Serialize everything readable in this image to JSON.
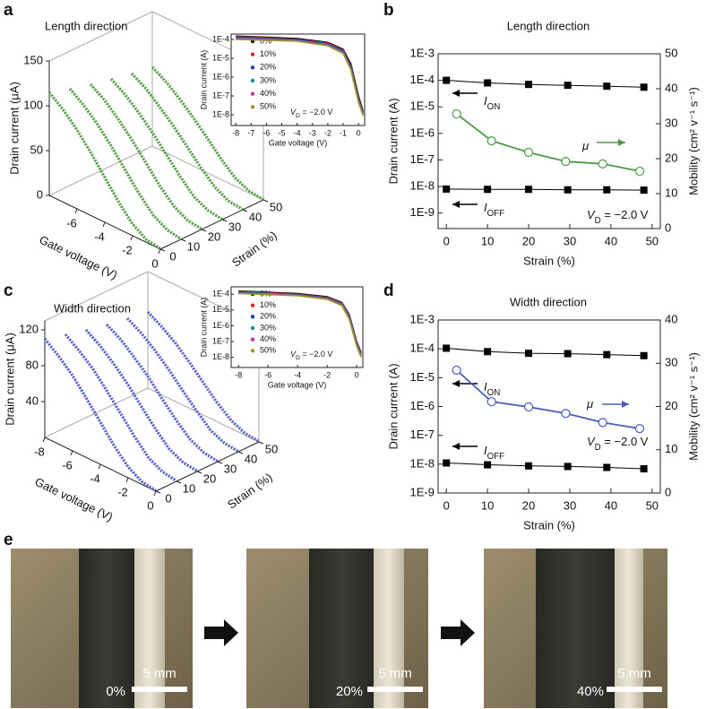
{
  "panel_labels": [
    "a",
    "b",
    "c",
    "d",
    "e"
  ],
  "chart_data": [
    {
      "type": "line3d",
      "title": "Length direction",
      "xlabel": "Gate voltage (V)",
      "ylabel": "Strain (%)",
      "zlabel": "Drain current (μA)",
      "xlim": [
        -8,
        0
      ],
      "xticks": [
        -6,
        -4,
        -2,
        0
      ],
      "ylim": [
        0,
        50
      ],
      "yticks": [
        0,
        10,
        20,
        30,
        40,
        50
      ],
      "zlim": [
        0,
        150
      ],
      "zticks": [
        0,
        50,
        100,
        150
      ],
      "x": [
        -8,
        -7,
        -6,
        -5,
        -4,
        -3,
        -2,
        -1,
        0
      ],
      "series": [
        {
          "strain": 0,
          "color": "#5a9e4b",
          "values": [
            115,
            103,
            88,
            70,
            50,
            30,
            13,
            3,
            0.5
          ]
        },
        {
          "strain": 10,
          "color": "#5a9e4b",
          "values": [
            108,
            97,
            83,
            66,
            47,
            28,
            12,
            3,
            0.5
          ]
        },
        {
          "strain": 20,
          "color": "#5a9e4b",
          "values": [
            102,
            92,
            78,
            62,
            44,
            26,
            11,
            2.5,
            0.5
          ]
        },
        {
          "strain": 30,
          "color": "#5a9e4b",
          "values": [
            97,
            87,
            74,
            59,
            42,
            25,
            10,
            2.5,
            0.4
          ]
        },
        {
          "strain": 40,
          "color": "#5a9e4b",
          "values": [
            92,
            83,
            70,
            56,
            40,
            24,
            10,
            2,
            0.4
          ]
        },
        {
          "strain": 50,
          "color": "#5a9e4b",
          "values": [
            88,
            79,
            67,
            53,
            38,
            22,
            9,
            2,
            0.4
          ]
        }
      ]
    },
    {
      "type": "line",
      "xlabel": "Gate voltage (V)",
      "ylabel": "Drain current (A)",
      "ylog": true,
      "xlim": [
        -8.3,
        0.4
      ],
      "xticks": [
        -8,
        -7,
        -6,
        -5,
        -4,
        -3,
        -2,
        -1,
        0
      ],
      "ylim": [
        2.7e-09,
        0.000193
      ],
      "yticks": [
        {
          "value": 1e-08,
          "label": "1E-8"
        },
        {
          "value": 1e-07,
          "label": "1E-7"
        },
        {
          "value": 1e-06,
          "label": "1E-6"
        },
        {
          "value": 1e-05,
          "label": "1E-5"
        },
        {
          "value": 0.0001,
          "label": "1E-4"
        }
      ],
      "x": [
        -8,
        -6,
        -4,
        -2,
        -1,
        -0.5,
        0,
        0.3
      ],
      "series": [
        {
          "name": "0%",
          "color": "#000000",
          "values": [
            0.00015,
            0.00013,
            0.00011,
            7e-05,
            3e-05,
            5e-06,
            1e-07,
            1.5e-08
          ]
        },
        {
          "name": "10%",
          "color": "#d62728",
          "values": [
            0.00014,
            0.00012,
            0.0001,
            6.5e-05,
            2.7e-05,
            4e-06,
            8e-08,
            1.3e-08
          ]
        },
        {
          "name": "20%",
          "color": "#1f3fbf",
          "values": [
            0.00013,
            0.00011,
            9.5e-05,
            6e-05,
            2.5e-05,
            3.5e-06,
            7e-08,
            1.2e-08
          ]
        },
        {
          "name": "30%",
          "color": "#1a8a8a",
          "values": [
            0.00012,
            0.000105,
            9e-05,
            5.5e-05,
            2.2e-05,
            3e-06,
            6e-08,
            1.1e-08
          ]
        },
        {
          "name": "40%",
          "color": "#c0399e",
          "values": [
            0.00011,
            0.0001,
            8.5e-05,
            5e-05,
            2e-05,
            2.7e-06,
            5e-08,
            1e-08
          ]
        },
        {
          "name": "50%",
          "color": "#9a9a2a",
          "values": [
            0.0001,
            9e-05,
            8e-05,
            4.6e-05,
            1.8e-05,
            2.4e-06,
            4.5e-08,
            9e-09
          ]
        }
      ],
      "annotation": {
        "symbol": "V",
        "subscript": "D",
        "text": " = −2.0 V"
      }
    },
    {
      "type": "dual_line",
      "title": "Length direction",
      "xlabel": "Strain (%)",
      "ylabel": "Drain current (A)",
      "y2label": "Mobility (cm² v⁻¹ s⁻¹)",
      "ylog": true,
      "xlim": [
        -2,
        52
      ],
      "xticks": [
        0,
        10,
        20,
        30,
        40,
        50
      ],
      "ylim": [
        2.6e-10,
        0.001
      ],
      "yticks": [
        {
          "value": 1e-09,
          "label": "1E-9"
        },
        {
          "value": 1e-08,
          "label": "1E-8"
        },
        {
          "value": 1e-07,
          "label": "1E-7"
        },
        {
          "value": 1e-06,
          "label": "1E-6"
        },
        {
          "value": 1e-05,
          "label": "1E-5"
        },
        {
          "value": 0.0001,
          "label": "1E-4"
        },
        {
          "value": 0.001,
          "label": "1E-3"
        }
      ],
      "y2lim": [
        0,
        50
      ],
      "y2ticks": [
        0,
        10,
        20,
        30,
        40,
        50
      ],
      "series": [
        {
          "label": {
            "symbol": "I",
            "subscript": "ON"
          },
          "axis": "y",
          "marker": "square",
          "color": "#000000",
          "x": [
            0,
            10,
            20,
            29.5,
            39,
            48
          ],
          "values": [
            0.0001,
            8e-05,
            7e-05,
            6.5e-05,
            6e-05,
            5.5e-05
          ]
        },
        {
          "label": {
            "symbol": "I",
            "subscript": "OFF"
          },
          "axis": "y",
          "marker": "square",
          "color": "#000000",
          "x": [
            0,
            10,
            20,
            29.5,
            39,
            48
          ],
          "values": [
            8e-09,
            7.8e-09,
            7.8e-09,
            7.5e-09,
            7.5e-09,
            7.3e-09
          ]
        },
        {
          "label": {
            "symbol": "μ"
          },
          "axis": "y2",
          "marker": "circle",
          "color": "#4e9a47",
          "x": [
            2.5,
            11,
            20,
            29,
            38,
            47
          ],
          "values": [
            32.8,
            25.1,
            21.8,
            19.2,
            18.5,
            16.4
          ]
        }
      ],
      "annotation": {
        "symbol": "V",
        "subscript": "D",
        "text": " = −2.0 V"
      }
    },
    {
      "type": "line3d",
      "title": "Width direction",
      "xlabel": "Gate voltage (V)",
      "ylabel": "Strain (%)",
      "zlabel": "Drain current (μA)",
      "xlim": [
        -8,
        0
      ],
      "xticks": [
        -8,
        -6,
        -4,
        -2,
        0
      ],
      "ylim": [
        0,
        50
      ],
      "yticks": [
        0,
        10,
        20,
        30,
        40,
        50
      ],
      "zlim": [
        0,
        130
      ],
      "zticks": [
        40,
        80,
        120
      ],
      "x": [
        -8,
        -7,
        -6,
        -5,
        -4,
        -3,
        -2,
        -1,
        0
      ],
      "series": [
        {
          "strain": 0,
          "color": "#5a64c8",
          "values": [
            110,
            98,
            84,
            66,
            47,
            28,
            12,
            3,
            0.5
          ]
        },
        {
          "strain": 10,
          "color": "#5a64c8",
          "values": [
            104,
            93,
            80,
            63,
            45,
            27,
            11,
            3,
            0.5
          ]
        },
        {
          "strain": 20,
          "color": "#5a64c8",
          "values": [
            98,
            88,
            75,
            60,
            42,
            25,
            10,
            2.5,
            0.5
          ]
        },
        {
          "strain": 30,
          "color": "#5a64c8",
          "values": [
            93,
            84,
            71,
            57,
            40,
            24,
            10,
            2.5,
            0.4
          ]
        },
        {
          "strain": 40,
          "color": "#5a64c8",
          "values": [
            89,
            80,
            68,
            54,
            38,
            23,
            9,
            2,
            0.4
          ]
        },
        {
          "strain": 50,
          "color": "#5a64c8",
          "values": [
            85,
            76,
            65,
            51,
            36,
            21,
            9,
            2,
            0.4
          ]
        }
      ]
    },
    {
      "type": "line",
      "xlabel": "Gate voltage (V)",
      "ylabel": "Drain current (A)",
      "ylog": true,
      "xlim": [
        -8.5,
        0.42
      ],
      "xticks": [
        -8,
        -6,
        -4,
        -2,
        0
      ],
      "ylim": [
        2.25e-09,
        0.000295
      ],
      "yticks": [
        {
          "value": 1e-08,
          "label": "1E-8"
        },
        {
          "value": 1e-07,
          "label": "1E-7"
        },
        {
          "value": 1e-06,
          "label": "1E-6"
        },
        {
          "value": 1e-05,
          "label": "1E-5"
        },
        {
          "value": 0.0001,
          "label": "1E-4"
        }
      ],
      "x": [
        -8,
        -6,
        -4,
        -2,
        -1,
        -0.5,
        0,
        0.3
      ],
      "series": [
        {
          "name": "0%",
          "color": "#000000",
          "values": [
            0.00016,
            0.000135,
            0.00011,
            7e-05,
            3e-05,
            5e-06,
            1e-07,
            2e-08
          ]
        },
        {
          "name": "10%",
          "color": "#d62728",
          "values": [
            0.00015,
            0.000125,
            0.0001,
            6.5e-05,
            2.8e-05,
            4.5e-06,
            9e-08,
            1.8e-08
          ]
        },
        {
          "name": "20%",
          "color": "#1f3fbf",
          "values": [
            0.00014,
            0.000115,
            9.5e-05,
            6e-05,
            2.5e-05,
            4e-06,
            8e-08,
            1.6e-08
          ]
        },
        {
          "name": "30%",
          "color": "#1a8a8a",
          "values": [
            0.00013,
            0.00011,
            9e-05,
            5.6e-05,
            2.3e-05,
            3.5e-06,
            7e-08,
            1.4e-08
          ]
        },
        {
          "name": "40%",
          "color": "#c0399e",
          "values": [
            0.00012,
            0.0001,
            8.5e-05,
            5.2e-05,
            2.1e-05,
            3e-06,
            6e-08,
            1.2e-08
          ]
        },
        {
          "name": "50%",
          "color": "#9a9a2a",
          "values": [
            0.00011,
            9.5e-05,
            8e-05,
            4.8e-05,
            1.9e-05,
            2.6e-06,
            5e-08,
            1e-08
          ]
        }
      ],
      "annotation": {
        "symbol": "V",
        "subscript": "D",
        "text": " = −2.0 V"
      }
    },
    {
      "type": "dual_line",
      "title": "Width direction",
      "xlabel": "Strain (%)",
      "ylabel": "Drain current (A)",
      "y2label": "Mobility (cm² v⁻¹ s⁻¹)",
      "ylog": true,
      "xlim": [
        -2,
        52
      ],
      "xticks": [
        0,
        10,
        20,
        30,
        40,
        50
      ],
      "ylim": [
        1e-09,
        0.001
      ],
      "yticks": [
        {
          "value": 1e-09,
          "label": "1E-9"
        },
        {
          "value": 1e-08,
          "label": "1E-8"
        },
        {
          "value": 1e-07,
          "label": "1E-7"
        },
        {
          "value": 1e-06,
          "label": "1E-6"
        },
        {
          "value": 1e-05,
          "label": "1E-5"
        },
        {
          "value": 0.0001,
          "label": "1E-4"
        },
        {
          "value": 0.001,
          "label": "1E-3"
        }
      ],
      "y2lim": [
        0,
        40
      ],
      "y2ticks": [
        0,
        10,
        20,
        30,
        40
      ],
      "series": [
        {
          "label": {
            "symbol": "I",
            "subscript": "ON"
          },
          "axis": "y",
          "marker": "square",
          "color": "#000000",
          "x": [
            0,
            10,
            20,
            29.5,
            39,
            48
          ],
          "values": [
            0.000105,
            8e-05,
            7e-05,
            6.8e-05,
            6.3e-05,
            5.8e-05
          ]
        },
        {
          "label": {
            "symbol": "I",
            "subscript": "OFF"
          },
          "axis": "y",
          "marker": "square",
          "color": "#000000",
          "x": [
            0,
            10,
            20,
            29.5,
            39,
            48
          ],
          "values": [
            1.1e-08,
            9.5e-09,
            8.7e-09,
            8.3e-09,
            7.7e-09,
            6.9e-09
          ]
        },
        {
          "label": {
            "symbol": "μ"
          },
          "axis": "y2",
          "marker": "circle",
          "color": "#4a5cb8",
          "x": [
            2.5,
            11,
            20,
            29,
            38,
            47
          ],
          "values": [
            28.4,
            21.1,
            19.9,
            18.4,
            16.3,
            14.9
          ]
        }
      ],
      "annotation": {
        "symbol": "V",
        "subscript": "D",
        "text": " = −2.0 V"
      }
    }
  ],
  "photos": [
    {
      "label": "0%",
      "scale_bar": "5 mm"
    },
    {
      "label": "20%",
      "scale_bar": "5 mm"
    },
    {
      "label": "40%",
      "scale_bar": "5 mm"
    }
  ]
}
